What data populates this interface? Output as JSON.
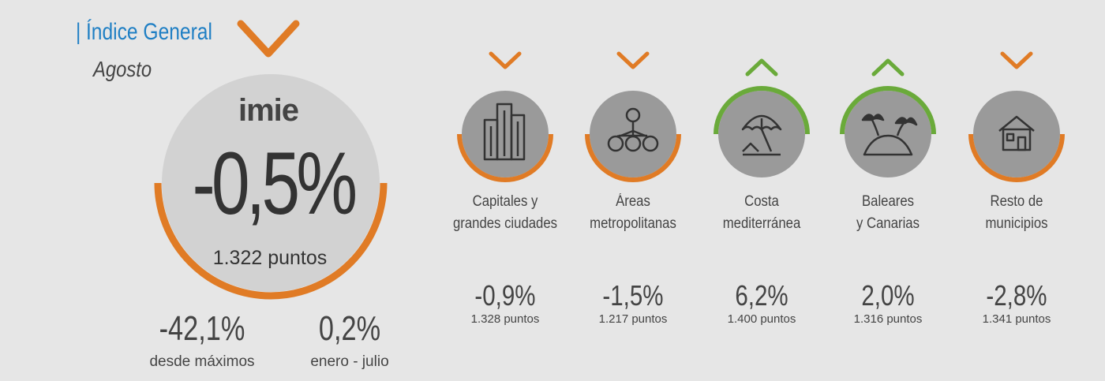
{
  "header": {
    "title": "Índice General",
    "subtitle": "Agosto"
  },
  "colors": {
    "down": "#e07b25",
    "up": "#6aaa3a",
    "title": "#1f7fc4",
    "circle": "#9a9a9a",
    "main_circle": "#d2d2d2"
  },
  "main": {
    "logo": "imie",
    "trend": "down",
    "value": "-0,5%",
    "points": "1.322 puntos",
    "stats": [
      {
        "value": "-42,1%",
        "label": "desde máximos"
      },
      {
        "value": "0,2%",
        "label": "enero - julio"
      }
    ]
  },
  "regions": [
    {
      "label_line1": "Capitales y",
      "label_line2": "grandes ciudades",
      "value": "-0,9%",
      "points": "1.328 puntos",
      "trend": "down",
      "icon": "buildings-icon"
    },
    {
      "label_line1": "Áreas",
      "label_line2": "metropolitanas",
      "value": "-1,5%",
      "points": "1.217 puntos",
      "trend": "down",
      "icon": "network-icon"
    },
    {
      "label_line1": "Costa",
      "label_line2": "mediterránea",
      "value": "6,2%",
      "points": "1.400 puntos",
      "trend": "up",
      "icon": "beach-umbrella-icon"
    },
    {
      "label_line1": "Baleares",
      "label_line2": "y Canarias",
      "value": "2,0%",
      "points": "1.316 puntos",
      "trend": "up",
      "icon": "palm-island-icon"
    },
    {
      "label_line1": "Resto de",
      "label_line2": "municipios",
      "value": "-2,8%",
      "points": "1.341 puntos",
      "trend": "down",
      "icon": "house-icon"
    }
  ]
}
